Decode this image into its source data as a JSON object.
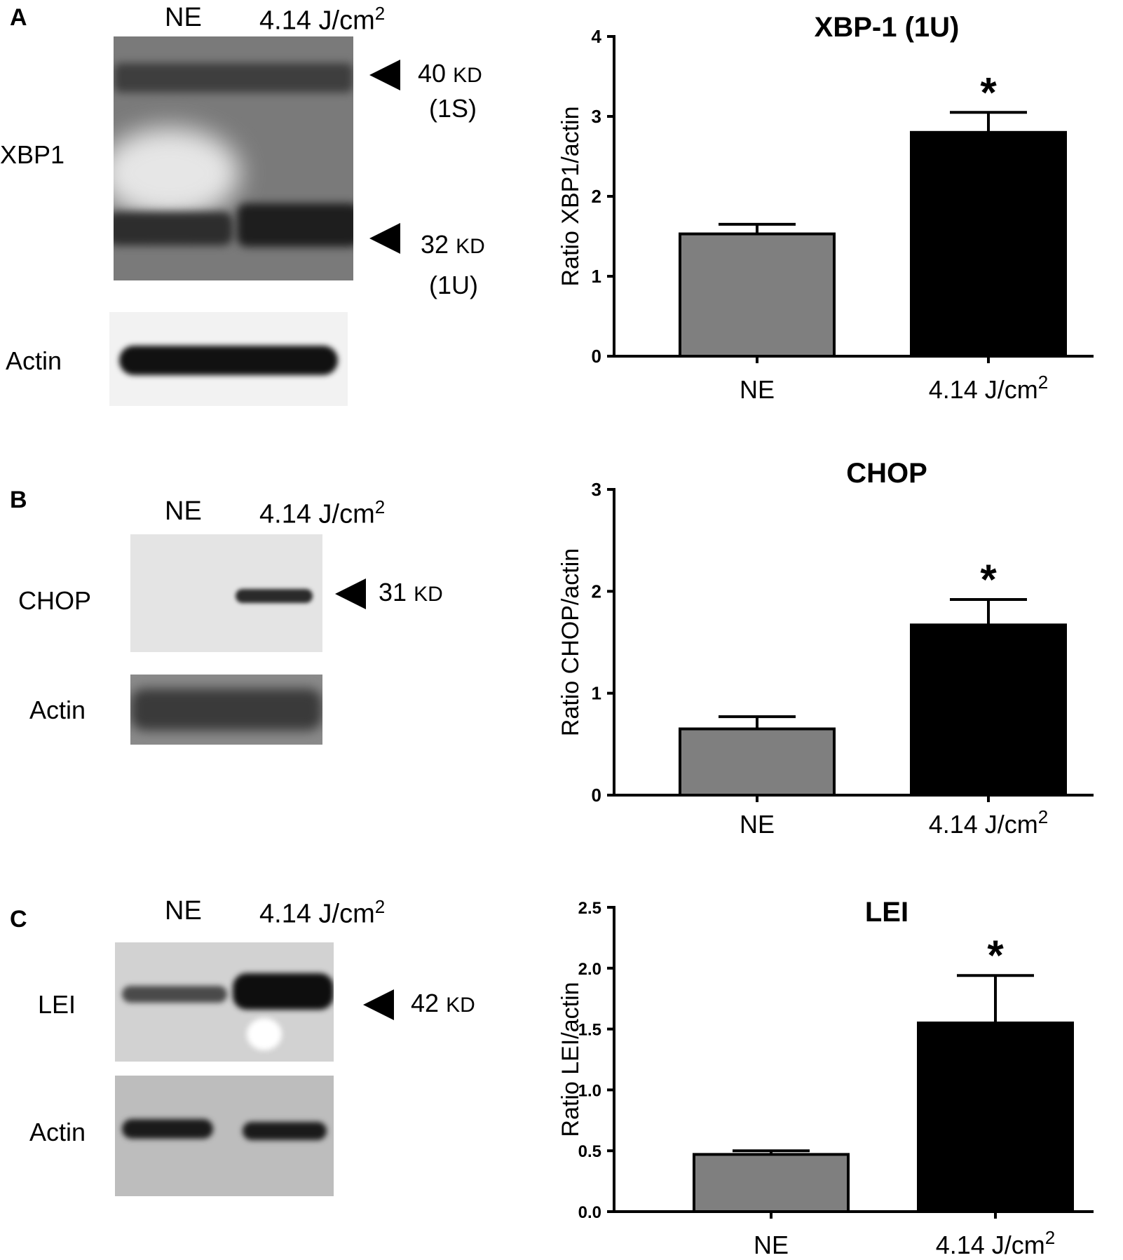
{
  "panels": [
    {
      "letter": "A",
      "lane_labels": [
        "NE",
        "4.14 J/cm"
      ],
      "lane_sup": "2",
      "blot_label": "XBP1",
      "markers": [
        {
          "value": "40",
          "unit": "KD",
          "note": "(1S)"
        },
        {
          "value": "32",
          "unit": "KD",
          "note": "(1U)"
        }
      ],
      "actin_label": "Actin"
    },
    {
      "letter": "B",
      "lane_labels": [
        "NE",
        "4.14 J/cm"
      ],
      "lane_sup": "2",
      "blot_label": "CHOP",
      "markers": [
        {
          "value": "31",
          "unit": "KD",
          "note": ""
        }
      ],
      "actin_label": "Actin"
    },
    {
      "letter": "C",
      "lane_labels": [
        "NE",
        "4.14 J/cm"
      ],
      "lane_sup": "2",
      "blot_label": "LEI",
      "markers": [
        {
          "value": "42",
          "unit": "KD",
          "note": ""
        }
      ],
      "actin_label": "Actin"
    }
  ],
  "colors": {
    "ne_bar": "#7f7f7f",
    "treated_bar": "#000000"
  },
  "chart_data": [
    {
      "type": "bar",
      "title": "XBP-1 (1U)",
      "categories": [
        "NE",
        "4.14 J/cm2"
      ],
      "category_display": [
        "NE",
        "4.14 J/cm"
      ],
      "category_sup": [
        "",
        "2"
      ],
      "values": [
        1.53,
        2.8
      ],
      "errors": [
        0.12,
        0.25
      ],
      "significance": [
        "",
        "*"
      ],
      "ylabel": "Ratio XBP1/actin",
      "ylim": [
        0,
        4
      ],
      "yticks": [
        "0",
        "1",
        "2",
        "3",
        "4"
      ],
      "ytick_values": [
        0,
        1,
        2,
        3,
        4
      ]
    },
    {
      "type": "bar",
      "title": "CHOP",
      "categories": [
        "NE",
        "4.14 J/cm2"
      ],
      "category_display": [
        "NE",
        "4.14 J/cm"
      ],
      "category_sup": [
        "",
        "2"
      ],
      "values": [
        0.65,
        1.67
      ],
      "errors": [
        0.12,
        0.25
      ],
      "significance": [
        "",
        "*"
      ],
      "ylabel": "Ratio CHOP/actin",
      "ylim": [
        0,
        3
      ],
      "yticks": [
        "0",
        "1",
        "2",
        "3"
      ],
      "ytick_values": [
        0,
        1,
        2,
        3
      ]
    },
    {
      "type": "bar",
      "title": "LEI",
      "categories": [
        "NE",
        "4.14 J/cm2"
      ],
      "category_display": [
        "NE",
        "4.14 J/cm"
      ],
      "category_sup": [
        "",
        "2"
      ],
      "values": [
        0.47,
        1.55
      ],
      "errors": [
        0.03,
        0.39
      ],
      "significance": [
        "",
        "*"
      ],
      "ylabel": "Ratio LEI/actin",
      "ylim": [
        0,
        2.5
      ],
      "yticks": [
        "0.0",
        "0.5",
        "1.0",
        "1.5",
        "2.0",
        "2.5"
      ],
      "ytick_values": [
        0,
        0.5,
        1.0,
        1.5,
        2.0,
        2.5
      ]
    }
  ]
}
